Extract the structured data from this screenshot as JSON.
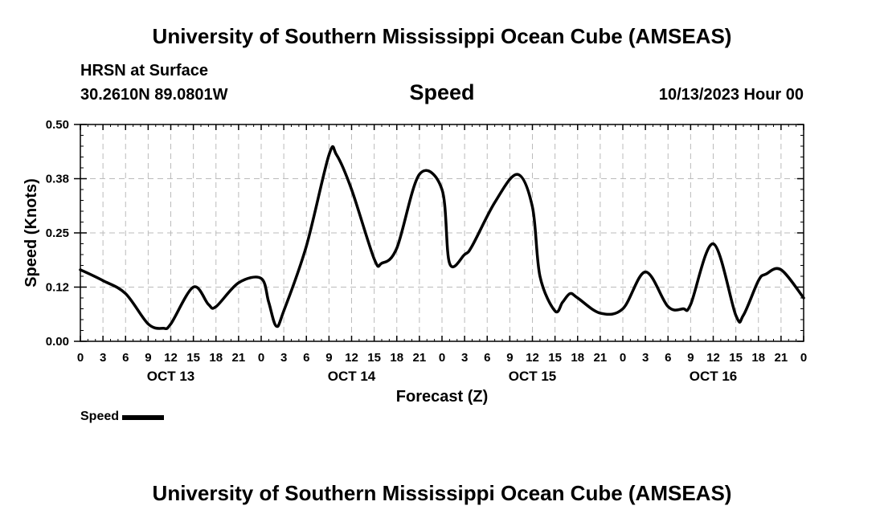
{
  "header": {
    "title": "University of Southern Mississippi Ocean Cube (AMSEAS)",
    "station": "HRSN at Surface",
    "coords": "30.2610N  89.0801W",
    "variable": "Speed",
    "datestamp": "10/13/2023 Hour 00"
  },
  "footer": {
    "title": "University of Southern Mississippi Ocean Cube (AMSEAS)"
  },
  "legend": {
    "label": "Speed",
    "color": "#000000"
  },
  "chart_data": {
    "type": "line",
    "title": "Speed",
    "xlabel": "Forecast (Z)",
    "ylabel": "Speed (Knots)",
    "xlim": [
      0,
      96
    ],
    "ylim": [
      0,
      0.5
    ],
    "yticks": [
      "0.00",
      "0.12",
      "0.25",
      "0.38",
      "0.50"
    ],
    "ytick_values": [
      0,
      0.125,
      0.25,
      0.375,
      0.5
    ],
    "xticks": [
      "0",
      "3",
      "6",
      "9",
      "12",
      "15",
      "18",
      "21",
      "0",
      "3",
      "6",
      "9",
      "12",
      "15",
      "18",
      "21",
      "0",
      "3",
      "6",
      "9",
      "12",
      "15",
      "18",
      "21",
      "0",
      "3",
      "6",
      "9",
      "12",
      "15",
      "18",
      "21",
      "0"
    ],
    "day_labels": [
      {
        "label": "OCT 13",
        "hour": 12
      },
      {
        "label": "OCT 14",
        "hour": 36
      },
      {
        "label": "OCT 15",
        "hour": 60
      },
      {
        "label": "OCT 16",
        "hour": 84
      }
    ],
    "grid": true,
    "series": [
      {
        "name": "Speed",
        "x": [
          0,
          3,
          6,
          9,
          11,
          12,
          15,
          17,
          18,
          21,
          24,
          25,
          26,
          27,
          30,
          33,
          34,
          36,
          39,
          40,
          42,
          45,
          48,
          49,
          51,
          52,
          55,
          58,
          60,
          61,
          63,
          64,
          65,
          66,
          69,
          72,
          75,
          78,
          80,
          81,
          84,
          87,
          88,
          90,
          91,
          93,
          96
        ],
        "y": [
          0.165,
          0.14,
          0.11,
          0.04,
          0.03,
          0.04,
          0.125,
          0.085,
          0.08,
          0.135,
          0.145,
          0.09,
          0.035,
          0.07,
          0.22,
          0.43,
          0.43,
          0.35,
          0.19,
          0.18,
          0.215,
          0.385,
          0.35,
          0.18,
          0.2,
          0.22,
          0.32,
          0.385,
          0.31,
          0.15,
          0.07,
          0.09,
          0.11,
          0.1,
          0.065,
          0.075,
          0.16,
          0.08,
          0.075,
          0.085,
          0.225,
          0.06,
          0.06,
          0.14,
          0.155,
          0.165,
          0.1
        ]
      }
    ]
  }
}
